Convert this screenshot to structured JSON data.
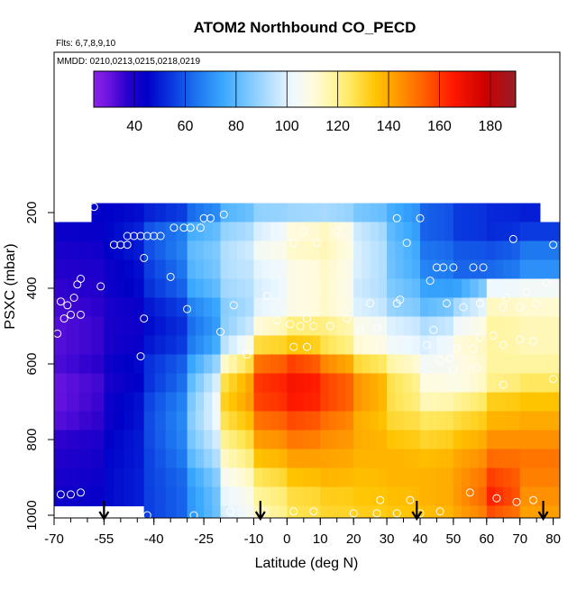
{
  "chart_data": {
    "type": "heatmap",
    "title": "ATOM2 Northbound CO_PECD",
    "subtitle_flights": "Flts: 6,7,8,9,10",
    "subtitle_dates": "MMDD: 0210,0213,0215,0218,0219",
    "xlabel": "Latitude (deg N)",
    "ylabel": "PSXC (mbar)",
    "xlim": [
      -70,
      82
    ],
    "ylim": [
      1000,
      150
    ],
    "y_reversed": true,
    "x_ticks": [
      -70,
      -55,
      -40,
      -25,
      -10,
      0,
      10,
      20,
      30,
      40,
      50,
      60,
      70,
      80
    ],
    "x_minor_tick_step": 5,
    "y_ticks": [
      200,
      400,
      600,
      800,
      1000
    ],
    "colorbar": {
      "min": 24,
      "max": 190,
      "ticks": [
        40,
        60,
        80,
        100,
        120,
        140,
        160,
        180
      ],
      "stops": [
        {
          "value": 24,
          "color": "#8c22e6"
        },
        {
          "value": 30,
          "color": "#6a14e0"
        },
        {
          "value": 37,
          "color": "#2a00cc"
        },
        {
          "value": 45,
          "color": "#0000c8"
        },
        {
          "value": 55,
          "color": "#0a3ae0"
        },
        {
          "value": 65,
          "color": "#1e78f0"
        },
        {
          "value": 75,
          "color": "#3aa8ff"
        },
        {
          "value": 85,
          "color": "#7cc8ff"
        },
        {
          "value": 95,
          "color": "#bfe4ff"
        },
        {
          "value": 102,
          "color": "#eef8ff"
        },
        {
          "value": 110,
          "color": "#fffbe0"
        },
        {
          "value": 118,
          "color": "#fff5a0"
        },
        {
          "value": 125,
          "color": "#ffe860"
        },
        {
          "value": 135,
          "color": "#ffc400"
        },
        {
          "value": 145,
          "color": "#ff9000"
        },
        {
          "value": 155,
          "color": "#ff5a00"
        },
        {
          "value": 165,
          "color": "#ff1a00"
        },
        {
          "value": 178,
          "color": "#cc0000"
        },
        {
          "value": 190,
          "color": "#961e28"
        }
      ]
    },
    "arrows_latitude": [
      -55,
      -8,
      39,
      77
    ],
    "grid": false,
    "cells": {
      "lat_edges": [
        -70,
        -55,
        -43,
        -30,
        -20,
        -10,
        0,
        10,
        20,
        30,
        40,
        50,
        60,
        70,
        82
      ],
      "pressure_levels": [
        200,
        250,
        300,
        350,
        400,
        450,
        500,
        550,
        600,
        650,
        700,
        750,
        800,
        850,
        900,
        950,
        1000
      ],
      "values": [
        [
          45,
          45,
          50,
          62,
          78,
          88,
          90,
          92,
          85,
          78,
          62,
          55,
          52,
          50
        ],
        [
          43,
          45,
          58,
          76,
          88,
          98,
          110,
          115,
          98,
          82,
          62,
          55,
          52,
          55
        ],
        [
          40,
          44,
          57,
          80,
          92,
          104,
          112,
          116,
          100,
          84,
          65,
          60,
          58,
          65
        ],
        [
          38,
          42,
          54,
          78,
          92,
          100,
          108,
          114,
          100,
          84,
          68,
          62,
          62,
          70
        ],
        [
          36,
          42,
          52,
          74,
          90,
          98,
          108,
          114,
          98,
          86,
          74,
          72,
          102,
          104
        ],
        [
          34,
          40,
          48,
          66,
          86,
          100,
          108,
          114,
          100,
          90,
          80,
          90,
          114,
          112
        ],
        [
          32,
          40,
          46,
          62,
          86,
          110,
          122,
          122,
          108,
          100,
          92,
          102,
          118,
          115
        ],
        [
          32,
          40,
          48,
          64,
          92,
          128,
          135,
          128,
          112,
          104,
          98,
          110,
          118,
          115
        ],
        [
          33,
          42,
          52,
          72,
          110,
          150,
          160,
          148,
          130,
          118,
          104,
          108,
          118,
          118
        ],
        [
          30,
          40,
          52,
          78,
          125,
          160,
          168,
          160,
          145,
          128,
          110,
          108,
          120,
          125
        ],
        [
          30,
          42,
          55,
          82,
          130,
          158,
          166,
          160,
          145,
          128,
          115,
          118,
          132,
          135
        ],
        [
          32,
          42,
          56,
          84,
          125,
          150,
          158,
          152,
          140,
          130,
          125,
          128,
          138,
          140
        ],
        [
          36,
          44,
          56,
          82,
          118,
          142,
          150,
          146,
          140,
          135,
          130,
          135,
          145,
          145
        ],
        [
          38,
          45,
          55,
          78,
          112,
          135,
          142,
          142,
          138,
          138,
          136,
          140,
          152,
          150
        ],
        [
          40,
          46,
          55,
          72,
          105,
          125,
          135,
          138,
          136,
          138,
          138,
          142,
          160,
          148
        ],
        [
          42,
          46,
          55,
          70,
          100,
          118,
          128,
          132,
          134,
          136,
          138,
          142,
          165,
          145
        ],
        [
          42,
          46,
          55,
          70,
          98,
          115,
          126,
          130,
          132,
          134,
          136,
          140,
          158,
          142
        ]
      ]
    },
    "flight_points": [
      {
        "lat": -58,
        "p": 185
      },
      {
        "lat": -61,
        "p": 190
      },
      {
        "lat": -67,
        "p": 200
      },
      {
        "lat": -69,
        "p": 215
      },
      {
        "lat": -48,
        "p": 262
      },
      {
        "lat": -46,
        "p": 262
      },
      {
        "lat": -44,
        "p": 262
      },
      {
        "lat": -42,
        "p": 262
      },
      {
        "lat": -40,
        "p": 262
      },
      {
        "lat": -38,
        "p": 262
      },
      {
        "lat": -34,
        "p": 240
      },
      {
        "lat": -31,
        "p": 240
      },
      {
        "lat": -29,
        "p": 240
      },
      {
        "lat": -26,
        "p": 240
      },
      {
        "lat": -25,
        "p": 215
      },
      {
        "lat": -23,
        "p": 215
      },
      {
        "lat": -19,
        "p": 205
      },
      {
        "lat": -52,
        "p": 285
      },
      {
        "lat": -50,
        "p": 285
      },
      {
        "lat": -48,
        "p": 285
      },
      {
        "lat": 5,
        "p": 250
      },
      {
        "lat": 15,
        "p": 250
      },
      {
        "lat": 33,
        "p": 215
      },
      {
        "lat": 40,
        "p": 215
      },
      {
        "lat": 2,
        "p": 280
      },
      {
        "lat": 9,
        "p": 280
      },
      {
        "lat": 36,
        "p": 280
      },
      {
        "lat": 68,
        "p": 270
      },
      {
        "lat": 80,
        "p": 285
      },
      {
        "lat": 45,
        "p": 345
      },
      {
        "lat": 47,
        "p": 345
      },
      {
        "lat": 50,
        "p": 345
      },
      {
        "lat": 56,
        "p": 345
      },
      {
        "lat": 59,
        "p": 345
      },
      {
        "lat": -43,
        "p": 320
      },
      {
        "lat": -56,
        "p": 395
      },
      {
        "lat": -35,
        "p": 370
      },
      {
        "lat": -62,
        "p": 375
      },
      {
        "lat": -63,
        "p": 390
      },
      {
        "lat": -64,
        "p": 425
      },
      {
        "lat": -68,
        "p": 435
      },
      {
        "lat": -66,
        "p": 445
      },
      {
        "lat": -65,
        "p": 470
      },
      {
        "lat": -62,
        "p": 470
      },
      {
        "lat": -67,
        "p": 480
      },
      {
        "lat": -69,
        "p": 520
      },
      {
        "lat": -43,
        "p": 480
      },
      {
        "lat": -30,
        "p": 455
      },
      {
        "lat": -16,
        "p": 445
      },
      {
        "lat": -6,
        "p": 420
      },
      {
        "lat": 6,
        "p": 480
      },
      {
        "lat": -3,
        "p": 485
      },
      {
        "lat": 18,
        "p": 480
      },
      {
        "lat": 25,
        "p": 440
      },
      {
        "lat": 33,
        "p": 440
      },
      {
        "lat": 34,
        "p": 430
      },
      {
        "lat": 43,
        "p": 380
      },
      {
        "lat": 48,
        "p": 440
      },
      {
        "lat": 53,
        "p": 450
      },
      {
        "lat": 58,
        "p": 440
      },
      {
        "lat": 66,
        "p": 425
      },
      {
        "lat": 72,
        "p": 410
      },
      {
        "lat": 75,
        "p": 440
      },
      {
        "lat": 78,
        "p": 385
      },
      {
        "lat": 65,
        "p": 450
      },
      {
        "lat": 70,
        "p": 450
      },
      {
        "lat": 1,
        "p": 495
      },
      {
        "lat": 4,
        "p": 500
      },
      {
        "lat": 8,
        "p": 500
      },
      {
        "lat": 13,
        "p": 500
      },
      {
        "lat": 22,
        "p": 510
      },
      {
        "lat": 27,
        "p": 505
      },
      {
        "lat": 44,
        "p": 510
      },
      {
        "lat": -20,
        "p": 515
      },
      {
        "lat": 58,
        "p": 530
      },
      {
        "lat": 62,
        "p": 525
      },
      {
        "lat": 51,
        "p": 560
      },
      {
        "lat": 56,
        "p": 560
      },
      {
        "lat": 65,
        "p": 550
      },
      {
        "lat": 70,
        "p": 535
      },
      {
        "lat": 74,
        "p": 540
      },
      {
        "lat": 2,
        "p": 555
      },
      {
        "lat": 6,
        "p": 555
      },
      {
        "lat": 42,
        "p": 550
      },
      {
        "lat": -44,
        "p": 580
      },
      {
        "lat": -12,
        "p": 575
      },
      {
        "lat": 46,
        "p": 590
      },
      {
        "lat": 49,
        "p": 585
      },
      {
        "lat": 50,
        "p": 615
      },
      {
        "lat": 57,
        "p": 610
      },
      {
        "lat": 65,
        "p": 655
      },
      {
        "lat": 80,
        "p": 640
      },
      {
        "lat": -68,
        "p": 945
      },
      {
        "lat": -65,
        "p": 945
      },
      {
        "lat": -62,
        "p": 940
      },
      {
        "lat": 28,
        "p": 960
      },
      {
        "lat": 37,
        "p": 960
      },
      {
        "lat": 55,
        "p": 940
      },
      {
        "lat": 63,
        "p": 955
      },
      {
        "lat": 69,
        "p": 965
      },
      {
        "lat": 74,
        "p": 960
      },
      {
        "lat": -42,
        "p": 1000
      },
      {
        "lat": -17,
        "p": 990
      },
      {
        "lat": -7,
        "p": 990
      },
      {
        "lat": 2,
        "p": 990
      },
      {
        "lat": 8,
        "p": 990
      },
      {
        "lat": 20,
        "p": 995
      },
      {
        "lat": 27,
        "p": 995
      },
      {
        "lat": 33,
        "p": 995
      },
      {
        "lat": 40,
        "p": 995
      },
      {
        "lat": 46,
        "p": 990
      },
      {
        "lat": -28,
        "p": 1000
      }
    ]
  }
}
